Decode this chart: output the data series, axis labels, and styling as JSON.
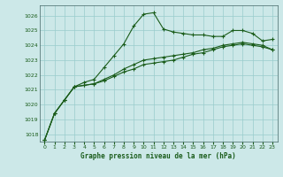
{
  "title": "Graphe pression niveau de la mer (hPa)",
  "background_color": "#cce8e8",
  "grid_color": "#99cccc",
  "line_color": "#1a5c1a",
  "ylim": [
    1017.5,
    1026.7
  ],
  "xlim": [
    -0.5,
    23.5
  ],
  "yticks": [
    1018,
    1019,
    1020,
    1021,
    1022,
    1023,
    1024,
    1025,
    1026
  ],
  "xticks": [
    0,
    1,
    2,
    3,
    4,
    5,
    6,
    7,
    8,
    9,
    10,
    11,
    12,
    13,
    14,
    15,
    16,
    17,
    18,
    19,
    20,
    21,
    22,
    23
  ],
  "series1": [
    1017.6,
    1019.4,
    1020.3,
    1021.2,
    1021.5,
    1021.7,
    1022.5,
    1023.3,
    1024.1,
    1025.3,
    1026.1,
    1026.2,
    1025.1,
    1024.9,
    1024.8,
    1024.7,
    1024.7,
    1024.6,
    1024.6,
    1025.0,
    1025.0,
    1024.8,
    1024.3,
    1024.4
  ],
  "series2": [
    1017.6,
    1019.4,
    1020.3,
    1021.2,
    1021.3,
    1021.4,
    1021.6,
    1021.9,
    1022.2,
    1022.4,
    1022.7,
    1022.8,
    1022.9,
    1023.0,
    1023.2,
    1023.4,
    1023.5,
    1023.7,
    1023.9,
    1024.0,
    1024.1,
    1024.0,
    1023.9,
    1023.7
  ],
  "series3": [
    1017.6,
    1019.4,
    1020.3,
    1021.2,
    1021.3,
    1021.4,
    1021.7,
    1022.0,
    1022.4,
    1022.7,
    1023.0,
    1023.1,
    1023.2,
    1023.3,
    1023.4,
    1023.5,
    1023.7,
    1023.8,
    1024.0,
    1024.1,
    1024.2,
    1024.1,
    1024.0,
    1023.7
  ]
}
